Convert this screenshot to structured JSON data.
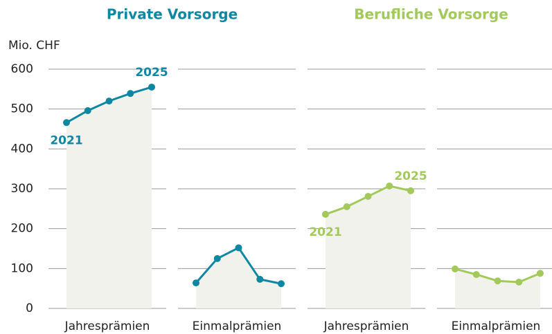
{
  "chart_data": {
    "type": "line",
    "ylabel": "Mio. CHF",
    "ylim": [
      0,
      600
    ],
    "yticks": [
      0,
      100,
      200,
      300,
      400,
      500,
      600
    ],
    "groups": [
      {
        "title": "Private Vorsorge",
        "color": "#0e87a3",
        "panels": [
          {
            "name": "Jahresprämien",
            "values": [
              466,
              496,
              520,
              539,
              555
            ],
            "start_label": "2021",
            "end_label": "2025"
          },
          {
            "name": "Einmalprämien",
            "values": [
              64,
              125,
              152,
              73,
              62
            ]
          }
        ]
      },
      {
        "title": "Berufliche Vorsorge",
        "color": "#a3c95c",
        "panels": [
          {
            "name": "Jahresprämien",
            "values": [
              236,
              255,
              281,
              307,
              295
            ],
            "start_label": "2021",
            "end_label": "2025"
          },
          {
            "name": "Einmalprämien",
            "values": [
              99,
              85,
              69,
              66,
              88
            ]
          }
        ]
      }
    ]
  }
}
